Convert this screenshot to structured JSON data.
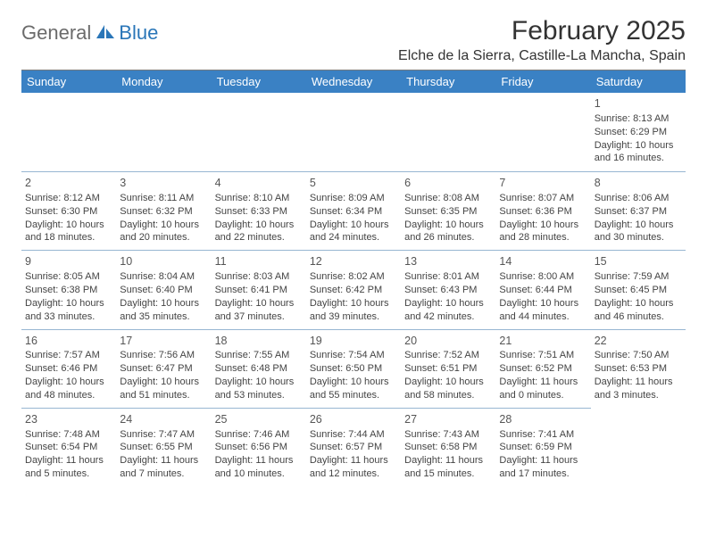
{
  "brand": {
    "part1": "General",
    "part2": "Blue"
  },
  "title": "February 2025",
  "location": "Elche de la Sierra, Castille-La Mancha, Spain",
  "colors": {
    "header_bg": "#3a81c4",
    "header_text": "#ffffff",
    "rule": "#97b6d2",
    "brand_gray": "#6b6b6b",
    "brand_blue": "#2a76b8"
  },
  "weekdays": [
    "Sunday",
    "Monday",
    "Tuesday",
    "Wednesday",
    "Thursday",
    "Friday",
    "Saturday"
  ],
  "leading_blanks": 6,
  "days": [
    {
      "n": "1",
      "sunrise": "8:13 AM",
      "sunset": "6:29 PM",
      "daylight": "10 hours and 16 minutes."
    },
    {
      "n": "2",
      "sunrise": "8:12 AM",
      "sunset": "6:30 PM",
      "daylight": "10 hours and 18 minutes."
    },
    {
      "n": "3",
      "sunrise": "8:11 AM",
      "sunset": "6:32 PM",
      "daylight": "10 hours and 20 minutes."
    },
    {
      "n": "4",
      "sunrise": "8:10 AM",
      "sunset": "6:33 PM",
      "daylight": "10 hours and 22 minutes."
    },
    {
      "n": "5",
      "sunrise": "8:09 AM",
      "sunset": "6:34 PM",
      "daylight": "10 hours and 24 minutes."
    },
    {
      "n": "6",
      "sunrise": "8:08 AM",
      "sunset": "6:35 PM",
      "daylight": "10 hours and 26 minutes."
    },
    {
      "n": "7",
      "sunrise": "8:07 AM",
      "sunset": "6:36 PM",
      "daylight": "10 hours and 28 minutes."
    },
    {
      "n": "8",
      "sunrise": "8:06 AM",
      "sunset": "6:37 PM",
      "daylight": "10 hours and 30 minutes."
    },
    {
      "n": "9",
      "sunrise": "8:05 AM",
      "sunset": "6:38 PM",
      "daylight": "10 hours and 33 minutes."
    },
    {
      "n": "10",
      "sunrise": "8:04 AM",
      "sunset": "6:40 PM",
      "daylight": "10 hours and 35 minutes."
    },
    {
      "n": "11",
      "sunrise": "8:03 AM",
      "sunset": "6:41 PM",
      "daylight": "10 hours and 37 minutes."
    },
    {
      "n": "12",
      "sunrise": "8:02 AM",
      "sunset": "6:42 PM",
      "daylight": "10 hours and 39 minutes."
    },
    {
      "n": "13",
      "sunrise": "8:01 AM",
      "sunset": "6:43 PM",
      "daylight": "10 hours and 42 minutes."
    },
    {
      "n": "14",
      "sunrise": "8:00 AM",
      "sunset": "6:44 PM",
      "daylight": "10 hours and 44 minutes."
    },
    {
      "n": "15",
      "sunrise": "7:59 AM",
      "sunset": "6:45 PM",
      "daylight": "10 hours and 46 minutes."
    },
    {
      "n": "16",
      "sunrise": "7:57 AM",
      "sunset": "6:46 PM",
      "daylight": "10 hours and 48 minutes."
    },
    {
      "n": "17",
      "sunrise": "7:56 AM",
      "sunset": "6:47 PM",
      "daylight": "10 hours and 51 minutes."
    },
    {
      "n": "18",
      "sunrise": "7:55 AM",
      "sunset": "6:48 PM",
      "daylight": "10 hours and 53 minutes."
    },
    {
      "n": "19",
      "sunrise": "7:54 AM",
      "sunset": "6:50 PM",
      "daylight": "10 hours and 55 minutes."
    },
    {
      "n": "20",
      "sunrise": "7:52 AM",
      "sunset": "6:51 PM",
      "daylight": "10 hours and 58 minutes."
    },
    {
      "n": "21",
      "sunrise": "7:51 AM",
      "sunset": "6:52 PM",
      "daylight": "11 hours and 0 minutes."
    },
    {
      "n": "22",
      "sunrise": "7:50 AM",
      "sunset": "6:53 PM",
      "daylight": "11 hours and 3 minutes."
    },
    {
      "n": "23",
      "sunrise": "7:48 AM",
      "sunset": "6:54 PM",
      "daylight": "11 hours and 5 minutes."
    },
    {
      "n": "24",
      "sunrise": "7:47 AM",
      "sunset": "6:55 PM",
      "daylight": "11 hours and 7 minutes."
    },
    {
      "n": "25",
      "sunrise": "7:46 AM",
      "sunset": "6:56 PM",
      "daylight": "11 hours and 10 minutes."
    },
    {
      "n": "26",
      "sunrise": "7:44 AM",
      "sunset": "6:57 PM",
      "daylight": "11 hours and 12 minutes."
    },
    {
      "n": "27",
      "sunrise": "7:43 AM",
      "sunset": "6:58 PM",
      "daylight": "11 hours and 15 minutes."
    },
    {
      "n": "28",
      "sunrise": "7:41 AM",
      "sunset": "6:59 PM",
      "daylight": "11 hours and 17 minutes."
    }
  ],
  "labels": {
    "sunrise": "Sunrise:",
    "sunset": "Sunset:",
    "daylight": "Daylight:"
  }
}
